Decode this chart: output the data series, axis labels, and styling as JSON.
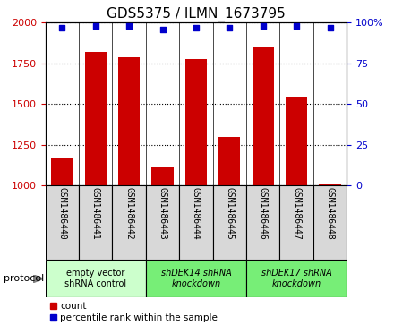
{
  "title": "GDS5375 / ILMN_1673795",
  "samples": [
    "GSM1486440",
    "GSM1486441",
    "GSM1486442",
    "GSM1486443",
    "GSM1486444",
    "GSM1486445",
    "GSM1486446",
    "GSM1486447",
    "GSM1486448"
  ],
  "counts": [
    1165,
    1820,
    1785,
    1110,
    1775,
    1295,
    1850,
    1545,
    1005
  ],
  "percentiles": [
    97,
    98,
    98,
    96,
    97,
    97,
    98,
    98,
    97
  ],
  "ylim_left": [
    1000,
    2000
  ],
  "ylim_right": [
    0,
    100
  ],
  "yticks_left": [
    1000,
    1250,
    1500,
    1750,
    2000
  ],
  "yticks_right": [
    0,
    25,
    50,
    75,
    100
  ],
  "bar_color": "#cc0000",
  "dot_color": "#0000cc",
  "groups": [
    {
      "label": "empty vector\nshRNA control",
      "start": 0,
      "end": 3,
      "color": "#ccffcc",
      "fontstyle": "normal"
    },
    {
      "label": "shDEK14 shRNA\nknockdown",
      "start": 3,
      "end": 6,
      "color": "#77ee77",
      "fontstyle": "italic"
    },
    {
      "label": "shDEK17 shRNA\nknockdown",
      "start": 6,
      "end": 9,
      "color": "#77ee77",
      "fontstyle": "italic"
    }
  ],
  "protocol_label": "protocol",
  "legend_count": "count",
  "legend_percentile": "percentile rank within the sample",
  "cell_bg": "#d8d8d8",
  "plot_bg": "#ffffff",
  "title_fontsize": 11,
  "tick_fontsize": 8,
  "sample_fontsize": 7
}
